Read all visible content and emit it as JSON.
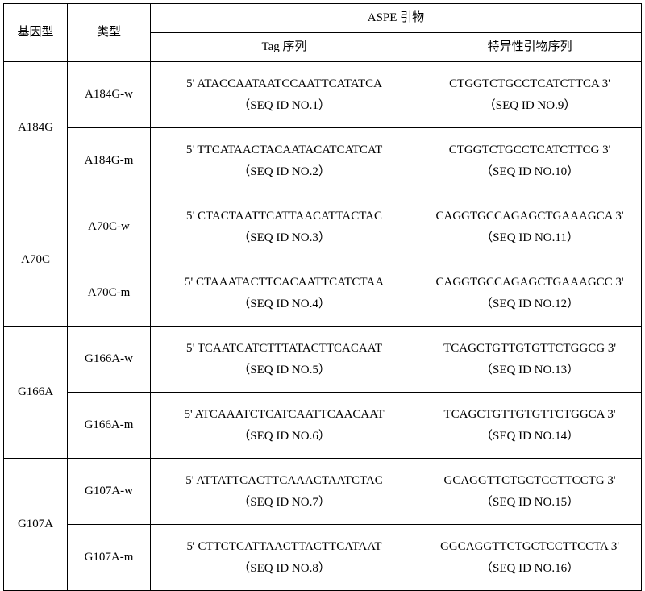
{
  "headers": {
    "genotype": "基因型",
    "type": "类型",
    "aspe": "ASPE 引物",
    "tag": "Tag 序列",
    "specific": "特异性引物序列"
  },
  "rows": [
    {
      "genotype": "A184G",
      "variants": [
        {
          "type": "A184G-w",
          "tag_seq": "5' ATACCAATAATCCAATTCATATCA",
          "tag_id": "（SEQ ID NO.1）",
          "primer_seq": "CTGGTCTGCCTCATCTTCA 3'",
          "primer_id": "（SEQ ID NO.9）"
        },
        {
          "type": "A184G-m",
          "tag_seq": "5' TTCATAACTACAATACATCATCAT",
          "tag_id": "（SEQ ID NO.2）",
          "primer_seq": "CTGGTCTGCCTCATCTTCG 3'",
          "primer_id": "（SEQ ID NO.10）"
        }
      ]
    },
    {
      "genotype": "A70C",
      "variants": [
        {
          "type": "A70C-w",
          "tag_seq": "5' CTACTAATTCATTAACATTACTAC",
          "tag_id": "（SEQ ID NO.3）",
          "primer_seq": "CAGGTGCCAGAGCTGAAAGCA 3'",
          "primer_id": "（SEQ ID NO.11）"
        },
        {
          "type": "A70C-m",
          "tag_seq": "5' CTAAATACTTCACAATTCATCTAA",
          "tag_id": "（SEQ ID NO.4）",
          "primer_seq": "CAGGTGCCAGAGCTGAAAGCC 3'",
          "primer_id": "（SEQ ID NO.12）"
        }
      ]
    },
    {
      "genotype": "G166A",
      "variants": [
        {
          "type": "G166A-w",
          "tag_seq": "5' TCAATCATCTTTATACTTCACAAT",
          "tag_id": "（SEQ ID NO.5）",
          "primer_seq": "TCAGCTGTTGTGTTCTGGCG 3'",
          "primer_id": "（SEQ ID NO.13）"
        },
        {
          "type": "G166A-m",
          "tag_seq": "5' ATCAAATCTCATCAATTCAACAAT",
          "tag_id": "（SEQ ID NO.6）",
          "primer_seq": "TCAGCTGTTGTGTTCTGGCA 3'",
          "primer_id": "（SEQ ID NO.14）"
        }
      ]
    },
    {
      "genotype": "G107A",
      "variants": [
        {
          "type": "G107A-w",
          "tag_seq": "5' ATTATTCACTTCAAACTAATCTAC",
          "tag_id": "（SEQ ID NO.7）",
          "primer_seq": "GCAGGTTCTGCTCCTTCCTG 3'",
          "primer_id": "（SEQ ID NO.15）"
        },
        {
          "type": "G107A-m",
          "tag_seq": "5' CTTCTCATTAACTTACTTCATAAT",
          "tag_id": "（SEQ ID NO.8）",
          "primer_seq": "GGCAGGTTCTGCTCCTTCCTA 3'",
          "primer_id": "（SEQ ID NO.16）"
        }
      ]
    }
  ]
}
